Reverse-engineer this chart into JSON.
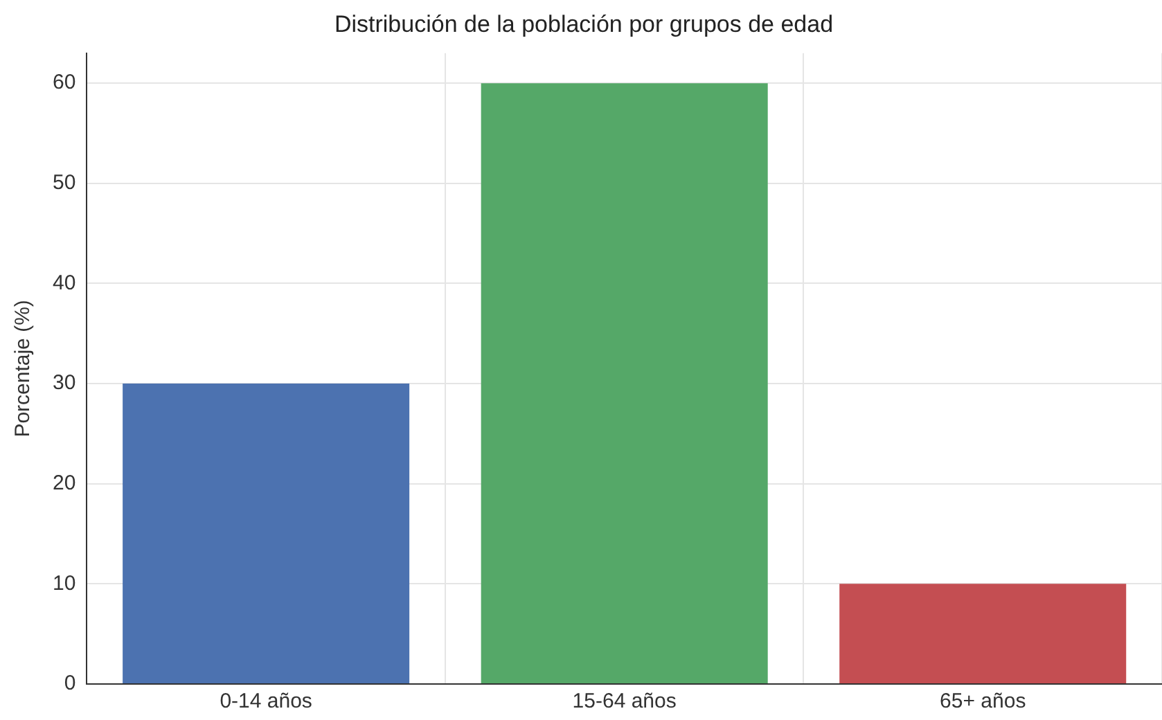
{
  "chart_data": {
    "type": "bar",
    "title": "Distribución de la población por grupos de edad",
    "ylabel": "Porcentaje (%)",
    "categories": [
      "0-14 años",
      "15-64 años",
      "65+ años"
    ],
    "values": [
      30,
      60,
      10
    ],
    "colors": [
      "#4c72b0",
      "#55a868",
      "#c44e52"
    ],
    "ylim": [
      0,
      63
    ],
    "yticks": [
      0,
      10,
      20,
      30,
      40,
      50,
      60
    ],
    "grid": true
  }
}
